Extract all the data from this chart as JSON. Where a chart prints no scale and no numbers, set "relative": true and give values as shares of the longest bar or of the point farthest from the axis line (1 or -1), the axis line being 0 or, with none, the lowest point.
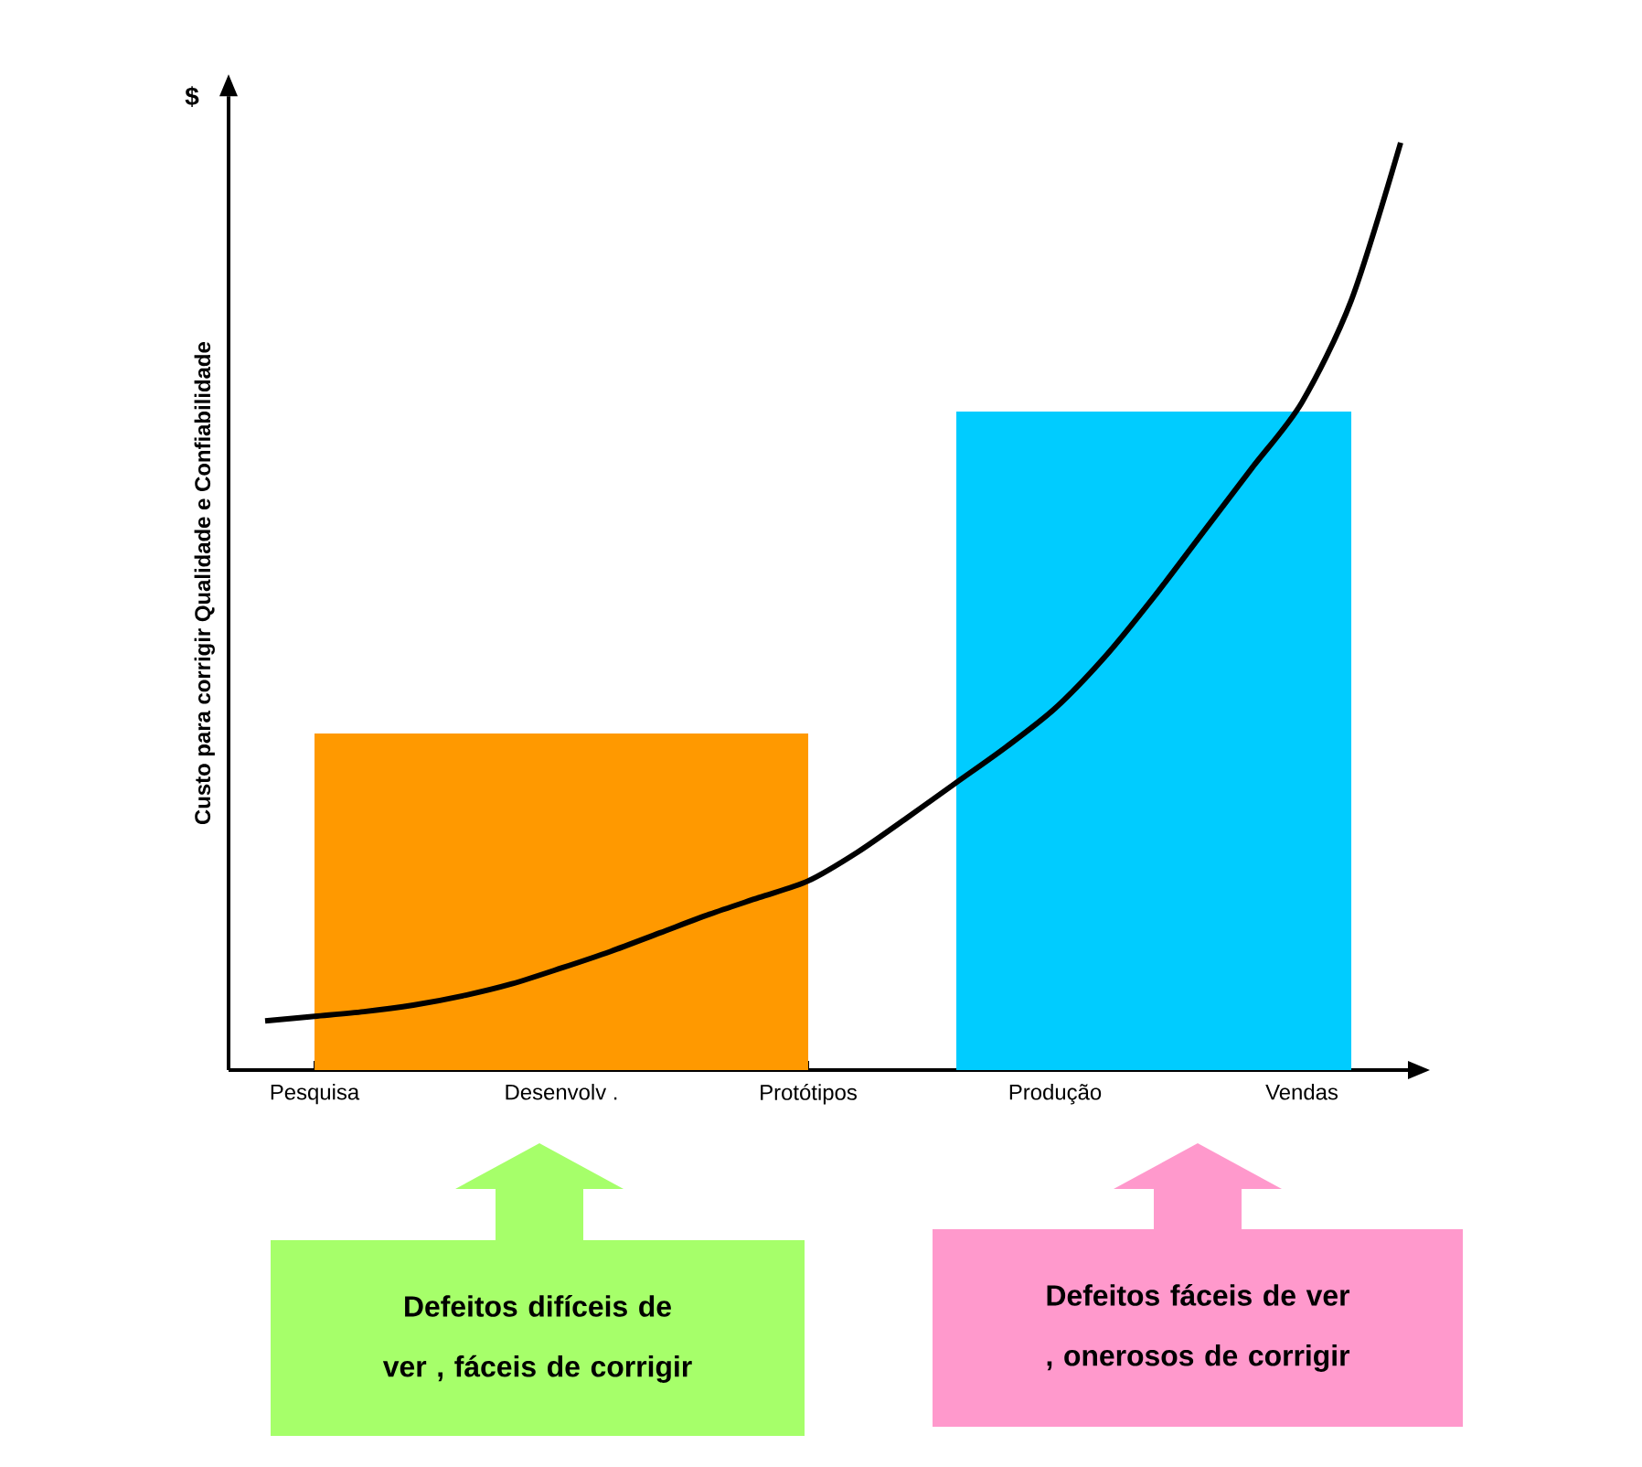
{
  "chart_data": {
    "type": "line",
    "relative": true,
    "ylabel": "Custo para corrigir Qualidade e Confiabilidade",
    "annotations": [
      "$",
      "Defeitos difíceis de ver , fáceis de corrigir",
      "Defeitos fáceis de ver , onerosos de corrigir"
    ],
    "categories": [
      null,
      "Pesquisa",
      null,
      null,
      null,
      null,
      "Desenvolv .",
      null,
      null,
      null,
      null,
      "Protótipos",
      null,
      null,
      null,
      null,
      "Produção",
      null,
      null,
      null,
      null,
      "Vendas",
      null,
      null
    ],
    "series": [
      {
        "type": "area",
        "color": "#ff9900",
        "values": [
          null,
          0.363,
          0.363,
          0.363,
          0.363,
          0.363,
          0.363,
          0.363,
          0.363,
          0.363,
          0.363,
          0.363,
          null,
          null,
          null,
          null,
          null,
          null,
          null,
          null,
          null,
          null,
          null,
          null
        ]
      },
      {
        "type": "area",
        "color": "#00ccff",
        "values": [
          null,
          null,
          null,
          null,
          null,
          null,
          null,
          null,
          null,
          null,
          null,
          null,
          null,
          null,
          0.71,
          0.71,
          0.71,
          0.71,
          0.71,
          0.71,
          0.71,
          0.71,
          0.71,
          null
        ]
      },
      {
        "color": "#000000",
        "values": [
          0.053,
          0.058,
          0.063,
          0.07,
          0.08,
          0.093,
          0.11,
          0.128,
          0.148,
          0.168,
          0.186,
          0.204,
          0.235,
          0.272,
          0.31,
          0.348,
          0.39,
          0.445,
          0.51,
          0.58,
          0.65,
          0.72,
          0.83,
          1
        ]
      }
    ]
  }
}
